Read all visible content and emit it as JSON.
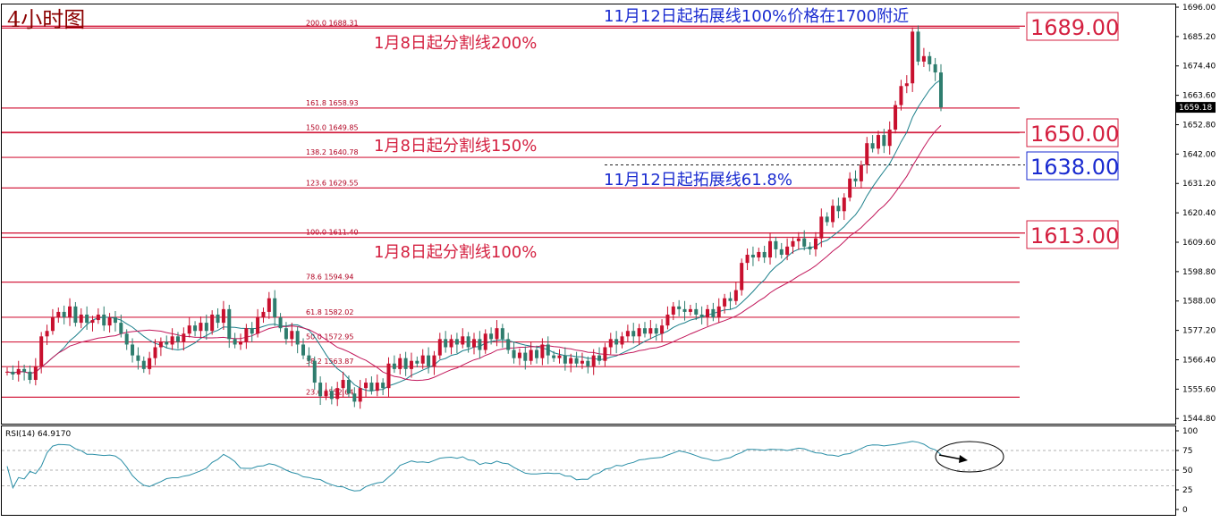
{
  "chart_data": [
    {
      "type": "candlestick",
      "title": "4小时图",
      "ylim": [
        1544.88,
        1696.0
      ],
      "y_ticks": [
        "1696.00",
        "1685.20",
        "1674.40",
        "1663.60",
        "1652.80",
        "1642.00",
        "1631.20",
        "1620.40",
        "1609.60",
        "1598.80",
        "1588.00",
        "1577.20",
        "1566.40",
        "1555.60",
        "1544.80"
      ],
      "current_price": "1659.18",
      "fib_levels": [
        {
          "ratio": "200.0",
          "price": "1688.31"
        },
        {
          "ratio": "161.8",
          "price": "1658.93"
        },
        {
          "ratio": "150.0",
          "price": "1649.85"
        },
        {
          "ratio": "138.2",
          "price": "1640.78"
        },
        {
          "ratio": "123.6",
          "price": "1629.55"
        },
        {
          "ratio": "100.0",
          "price": "1611.40"
        },
        {
          "ratio": "78.6",
          "price": "1594.94"
        },
        {
          "ratio": "61.8",
          "price": "1582.02"
        },
        {
          "ratio": "50.0",
          "price": "1572.95"
        },
        {
          "ratio": "38.2",
          "price": "1563.87"
        },
        {
          "ratio": "23.6",
          "price": "1552.64"
        }
      ],
      "key_levels": [
        {
          "price": 1689.0,
          "label": "1689.00",
          "color": "#d42040",
          "style": "solid"
        },
        {
          "price": 1650.0,
          "label": "1650.00",
          "color": "#d42040",
          "style": "solid"
        },
        {
          "price": 1638.0,
          "label": "1638.00",
          "color": "#1a2bd0",
          "style": "dashed"
        },
        {
          "price": 1613.0,
          "label": "1613.00",
          "color": "#d42040",
          "style": "solid"
        }
      ],
      "annotations": [
        {
          "text": "11月12日起拓展线100%价格在1700附近",
          "color": "blue"
        },
        {
          "text": "1月8日起分割线200%",
          "color": "red"
        },
        {
          "text": "1月8日起分割线150%",
          "color": "red"
        },
        {
          "text": "11月12日起拓展线61.8%",
          "color": "blue"
        },
        {
          "text": "1月8日起分割线100%",
          "color": "red"
        }
      ],
      "candles": [
        {
          "o": 1562.0,
          "c": 1562.0
        },
        {
          "o": 1562.0,
          "c": 1561.0
        },
        {
          "o": 1561.0,
          "c": 1563.0
        },
        {
          "o": 1563.0,
          "c": 1562.0
        },
        {
          "o": 1562.0,
          "c": 1559.0
        },
        {
          "o": 1559.0,
          "c": 1564.0
        },
        {
          "o": 1564.0,
          "c": 1575.0
        },
        {
          "o": 1575.0,
          "c": 1577.0
        },
        {
          "o": 1577.0,
          "c": 1582.0
        },
        {
          "o": 1582.0,
          "c": 1584.0
        },
        {
          "o": 1584.0,
          "c": 1582.0
        },
        {
          "o": 1582.0,
          "c": 1586.0
        },
        {
          "o": 1586.0,
          "c": 1580.0
        },
        {
          "o": 1580.0,
          "c": 1583.0
        },
        {
          "o": 1583.0,
          "c": 1580.0
        },
        {
          "o": 1580.0,
          "c": 1581.0
        },
        {
          "o": 1581.0,
          "c": 1583.0
        },
        {
          "o": 1583.0,
          "c": 1579.0
        },
        {
          "o": 1579.0,
          "c": 1582.0
        },
        {
          "o": 1582.0,
          "c": 1580.0
        },
        {
          "o": 1580.0,
          "c": 1576.0
        },
        {
          "o": 1576.0,
          "c": 1572.0
        },
        {
          "o": 1572.0,
          "c": 1568.0
        },
        {
          "o": 1568.0,
          "c": 1566.0
        },
        {
          "o": 1566.0,
          "c": 1563.0
        },
        {
          "o": 1563.0,
          "c": 1567.0
        },
        {
          "o": 1567.0,
          "c": 1571.0
        },
        {
          "o": 1571.0,
          "c": 1573.0
        },
        {
          "o": 1573.0,
          "c": 1572.0
        },
        {
          "o": 1572.0,
          "c": 1575.0
        },
        {
          "o": 1575.0,
          "c": 1573.0
        },
        {
          "o": 1573.0,
          "c": 1576.0
        },
        {
          "o": 1576.0,
          "c": 1579.0
        },
        {
          "o": 1579.0,
          "c": 1577.0
        },
        {
          "o": 1577.0,
          "c": 1580.0
        },
        {
          "o": 1580.0,
          "c": 1577.0
        },
        {
          "o": 1577.0,
          "c": 1583.0
        },
        {
          "o": 1583.0,
          "c": 1580.0
        },
        {
          "o": 1580.0,
          "c": 1585.0
        },
        {
          "o": 1585.0,
          "c": 1574.0
        },
        {
          "o": 1574.0,
          "c": 1572.0
        },
        {
          "o": 1572.0,
          "c": 1573.0
        },
        {
          "o": 1573.0,
          "c": 1578.0
        },
        {
          "o": 1578.0,
          "c": 1576.0
        },
        {
          "o": 1576.0,
          "c": 1582.0
        },
        {
          "o": 1582.0,
          "c": 1584.0
        },
        {
          "o": 1584.0,
          "c": 1589.0
        },
        {
          "o": 1589.0,
          "c": 1582.0
        },
        {
          "o": 1582.0,
          "c": 1578.0
        },
        {
          "o": 1578.0,
          "c": 1574.0
        },
        {
          "o": 1574.0,
          "c": 1577.0
        },
        {
          "o": 1577.0,
          "c": 1572.0
        },
        {
          "o": 1572.0,
          "c": 1568.0
        },
        {
          "o": 1568.0,
          "c": 1566.0
        },
        {
          "o": 1566.0,
          "c": 1558.0
        },
        {
          "o": 1558.0,
          "c": 1553.0
        },
        {
          "o": 1553.0,
          "c": 1555.0
        },
        {
          "o": 1555.0,
          "c": 1552.0
        },
        {
          "o": 1552.0,
          "c": 1556.0
        },
        {
          "o": 1556.0,
          "c": 1559.0
        },
        {
          "o": 1559.0,
          "c": 1554.0
        },
        {
          "o": 1554.0,
          "c": 1551.0
        },
        {
          "o": 1551.0,
          "c": 1556.0
        },
        {
          "o": 1556.0,
          "c": 1558.0
        },
        {
          "o": 1558.0,
          "c": 1555.0
        },
        {
          "o": 1555.0,
          "c": 1558.0
        },
        {
          "o": 1558.0,
          "c": 1556.0
        },
        {
          "o": 1556.0,
          "c": 1565.0
        },
        {
          "o": 1565.0,
          "c": 1563.0
        },
        {
          "o": 1563.0,
          "c": 1567.0
        },
        {
          "o": 1567.0,
          "c": 1563.0
        },
        {
          "o": 1563.0,
          "c": 1566.0
        },
        {
          "o": 1566.0,
          "c": 1565.0
        },
        {
          "o": 1565.0,
          "c": 1568.0
        },
        {
          "o": 1568.0,
          "c": 1564.0
        },
        {
          "o": 1564.0,
          "c": 1568.0
        },
        {
          "o": 1568.0,
          "c": 1574.0
        },
        {
          "o": 1574.0,
          "c": 1571.0
        },
        {
          "o": 1571.0,
          "c": 1574.0
        },
        {
          "o": 1574.0,
          "c": 1572.0
        },
        {
          "o": 1572.0,
          "c": 1575.0
        },
        {
          "o": 1575.0,
          "c": 1571.0
        },
        {
          "o": 1571.0,
          "c": 1574.0
        },
        {
          "o": 1574.0,
          "c": 1570.0
        },
        {
          "o": 1570.0,
          "c": 1576.0
        },
        {
          "o": 1576.0,
          "c": 1574.0
        },
        {
          "o": 1574.0,
          "c": 1578.0
        },
        {
          "o": 1578.0,
          "c": 1574.0
        },
        {
          "o": 1574.0,
          "c": 1570.0
        },
        {
          "o": 1570.0,
          "c": 1567.0
        },
        {
          "o": 1567.0,
          "c": 1569.0
        },
        {
          "o": 1569.0,
          "c": 1566.0
        },
        {
          "o": 1566.0,
          "c": 1570.0
        },
        {
          "o": 1570.0,
          "c": 1567.0
        },
        {
          "o": 1567.0,
          "c": 1572.0
        },
        {
          "o": 1572.0,
          "c": 1568.0
        },
        {
          "o": 1568.0,
          "c": 1567.0
        },
        {
          "o": 1567.0,
          "c": 1568.0
        },
        {
          "o": 1568.0,
          "c": 1565.0
        },
        {
          "o": 1565.0,
          "c": 1567.0
        },
        {
          "o": 1567.0,
          "c": 1565.0
        },
        {
          "o": 1565.0,
          "c": 1566.0
        },
        {
          "o": 1566.0,
          "c": 1564.0
        },
        {
          "o": 1564.0,
          "c": 1568.0
        },
        {
          "o": 1568.0,
          "c": 1566.0
        },
        {
          "o": 1566.0,
          "c": 1571.0
        },
        {
          "o": 1571.0,
          "c": 1574.0
        },
        {
          "o": 1574.0,
          "c": 1572.0
        },
        {
          "o": 1572.0,
          "c": 1575.0
        },
        {
          "o": 1575.0,
          "c": 1577.0
        },
        {
          "o": 1577.0,
          "c": 1575.0
        },
        {
          "o": 1575.0,
          "c": 1578.0
        },
        {
          "o": 1578.0,
          "c": 1576.0
        },
        {
          "o": 1576.0,
          "c": 1578.0
        },
        {
          "o": 1578.0,
          "c": 1576.0
        },
        {
          "o": 1576.0,
          "c": 1579.0
        },
        {
          "o": 1579.0,
          "c": 1583.0
        },
        {
          "o": 1583.0,
          "c": 1586.0
        },
        {
          "o": 1586.0,
          "c": 1585.0
        },
        {
          "o": 1585.0,
          "c": 1584.0
        },
        {
          "o": 1584.0,
          "c": 1585.0
        },
        {
          "o": 1585.0,
          "c": 1583.0
        },
        {
          "o": 1583.0,
          "c": 1582.0
        },
        {
          "o": 1582.0,
          "c": 1585.0
        },
        {
          "o": 1585.0,
          "c": 1582.0
        },
        {
          "o": 1582.0,
          "c": 1586.0
        },
        {
          "o": 1586.0,
          "c": 1589.0
        },
        {
          "o": 1589.0,
          "c": 1588.0
        },
        {
          "o": 1588.0,
          "c": 1592.0
        },
        {
          "o": 1592.0,
          "c": 1602.0
        },
        {
          "o": 1602.0,
          "c": 1605.0
        },
        {
          "o": 1605.0,
          "c": 1604.0
        },
        {
          "o": 1604.0,
          "c": 1606.0
        },
        {
          "o": 1606.0,
          "c": 1604.0
        },
        {
          "o": 1604.0,
          "c": 1610.0
        },
        {
          "o": 1610.0,
          "c": 1607.0
        },
        {
          "o": 1607.0,
          "c": 1605.0
        },
        {
          "o": 1605.0,
          "c": 1608.0
        },
        {
          "o": 1608.0,
          "c": 1610.0
        },
        {
          "o": 1610.0,
          "c": 1611.0
        },
        {
          "o": 1611.0,
          "c": 1608.0
        },
        {
          "o": 1608.0,
          "c": 1607.0
        },
        {
          "o": 1607.0,
          "c": 1611.0
        },
        {
          "o": 1611.0,
          "c": 1619.0
        },
        {
          "o": 1619.0,
          "c": 1617.0
        },
        {
          "o": 1617.0,
          "c": 1623.0
        },
        {
          "o": 1623.0,
          "c": 1621.0
        },
        {
          "o": 1621.0,
          "c": 1626.0
        },
        {
          "o": 1626.0,
          "c": 1633.0
        },
        {
          "o": 1633.0,
          "c": 1632.0
        },
        {
          "o": 1632.0,
          "c": 1638.0
        },
        {
          "o": 1638.0,
          "c": 1646.0
        },
        {
          "o": 1646.0,
          "c": 1644.0
        },
        {
          "o": 1644.0,
          "c": 1649.0
        },
        {
          "o": 1649.0,
          "c": 1645.0
        },
        {
          "o": 1645.0,
          "c": 1651.0
        },
        {
          "o": 1651.0,
          "c": 1660.0
        },
        {
          "o": 1660.0,
          "c": 1667.0
        },
        {
          "o": 1667.0,
          "c": 1668.0
        },
        {
          "o": 1668.0,
          "c": 1687.0
        },
        {
          "o": 1687.0,
          "c": 1676.0
        },
        {
          "o": 1676.0,
          "c": 1678.0
        },
        {
          "o": 1678.0,
          "c": 1675.0
        },
        {
          "o": 1675.0,
          "c": 1672.0
        },
        {
          "o": 1672.0,
          "c": 1659.18
        }
      ]
    },
    {
      "type": "line",
      "title": "RSI(14) 64.9170",
      "ylim": [
        0,
        100
      ],
      "y_ticks": [
        "100",
        "75",
        "50",
        "25",
        "0"
      ],
      "reference_lines": [
        75,
        50,
        30
      ]
    }
  ],
  "colors": {
    "bull": "#c8102e",
    "bear": "#2e7d6e",
    "ma_fast": "#1b7f8a",
    "ma_slow": "#c2185b",
    "rsi": "#2a8ea6",
    "red_line": "#d42040",
    "blue": "#1a2bd0"
  }
}
